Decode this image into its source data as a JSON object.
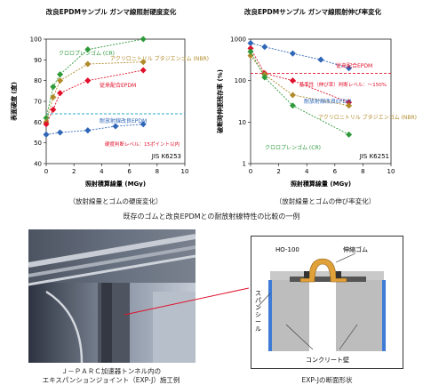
{
  "chart_data": [
    {
      "type": "line",
      "title": "改良EPDMサンプル ガンマ線照射硬度変化",
      "xlabel": "照射積算線量 (MGy)",
      "ylabel": "表面硬度 (度)",
      "xlim": [
        0,
        10
      ],
      "ylim": [
        40,
        100
      ],
      "xticks": [
        0,
        2,
        4,
        6,
        8,
        10
      ],
      "yticks": [
        40,
        50,
        60,
        70,
        80,
        90,
        100
      ],
      "std_label": "JIS K6253",
      "threshold_label": "硬度判断レベル：15ポイント以内",
      "grid": false,
      "series": [
        {
          "name": "クロロプレンゴム (CR)",
          "color": "#2e9a3a",
          "x": [
            0,
            0.5,
            1,
            3,
            7
          ],
          "y": [
            62,
            77,
            83,
            95,
            100
          ]
        },
        {
          "name": "アクリロニトリル ブタジエンゴム (NBR)",
          "color": "#b08a2a",
          "x": [
            0,
            0.5,
            1,
            3,
            7
          ],
          "y": [
            60,
            72,
            80,
            88,
            89
          ]
        },
        {
          "name": "従来配合EPDM",
          "color": "#e0102a",
          "x": [
            0,
            0.5,
            1,
            3,
            7
          ],
          "y": [
            59,
            66,
            74,
            80,
            85
          ]
        },
        {
          "name": "耐放射線改良EPDM",
          "color": "#2e66b8",
          "x": [
            0,
            1,
            3,
            5,
            7
          ],
          "y": [
            54,
            55,
            56,
            58,
            59
          ]
        }
      ],
      "caption": "（放射線量とゴムの硬度変化）"
    },
    {
      "type": "line",
      "title": "改良EPDMサンプル ガンマ線照射伸び率変化",
      "xlabel": "照射積算線量 (MGy)",
      "ylabel": "破断時伸張残存率 (%)",
      "xlim": [
        0,
        10
      ],
      "y_scale": "log",
      "ylim": [
        1,
        1000
      ],
      "xticks": [
        0,
        2,
        4,
        6,
        8,
        10
      ],
      "yticks": [
        1,
        10,
        100,
        1000
      ],
      "std_label": "JIS K6251",
      "threshold_label": "基準性（伸び率）判断レベル：～150%",
      "grid": false,
      "series": [
        {
          "name": "耐放射線改良EPDM",
          "color": "#2e66b8",
          "x": [
            0,
            1,
            3,
            5,
            7
          ],
          "y": [
            800,
            650,
            450,
            320,
            200
          ]
        },
        {
          "name": "従来配合EPDM",
          "color": "#e0102a",
          "x": [
            0,
            1,
            3,
            7
          ],
          "y": [
            600,
            150,
            100,
            30
          ]
        },
        {
          "name": "アクリロニトリル ブタジエンゴム (NBR)",
          "color": "#b08a2a",
          "x": [
            0,
            1,
            3,
            7
          ],
          "y": [
            400,
            140,
            45,
            25
          ]
        },
        {
          "name": "クロロプレンゴム (CR)",
          "color": "#2e9a3a",
          "x": [
            0,
            1,
            3,
            7
          ],
          "y": [
            500,
            120,
            25,
            5
          ]
        }
      ],
      "caption": "（放射線量とゴムの伸び率変化）"
    }
  ],
  "main_caption": "既存のゴムと改良EPDMとの耐放射線特性の比較の一例",
  "photo_caption_1": "Ｊ－ＰＡＲＣ加速器トンネル内の",
  "photo_caption_2": "エキスパンションジョイント（EXP-J）施工例",
  "diagram": {
    "label_ho": "HO-100",
    "label_gum": "伸縮ゴム",
    "label_span": "スパンシール",
    "label_wall": "コンクリート壁",
    "caption": "EXP-Jの断面形状"
  }
}
